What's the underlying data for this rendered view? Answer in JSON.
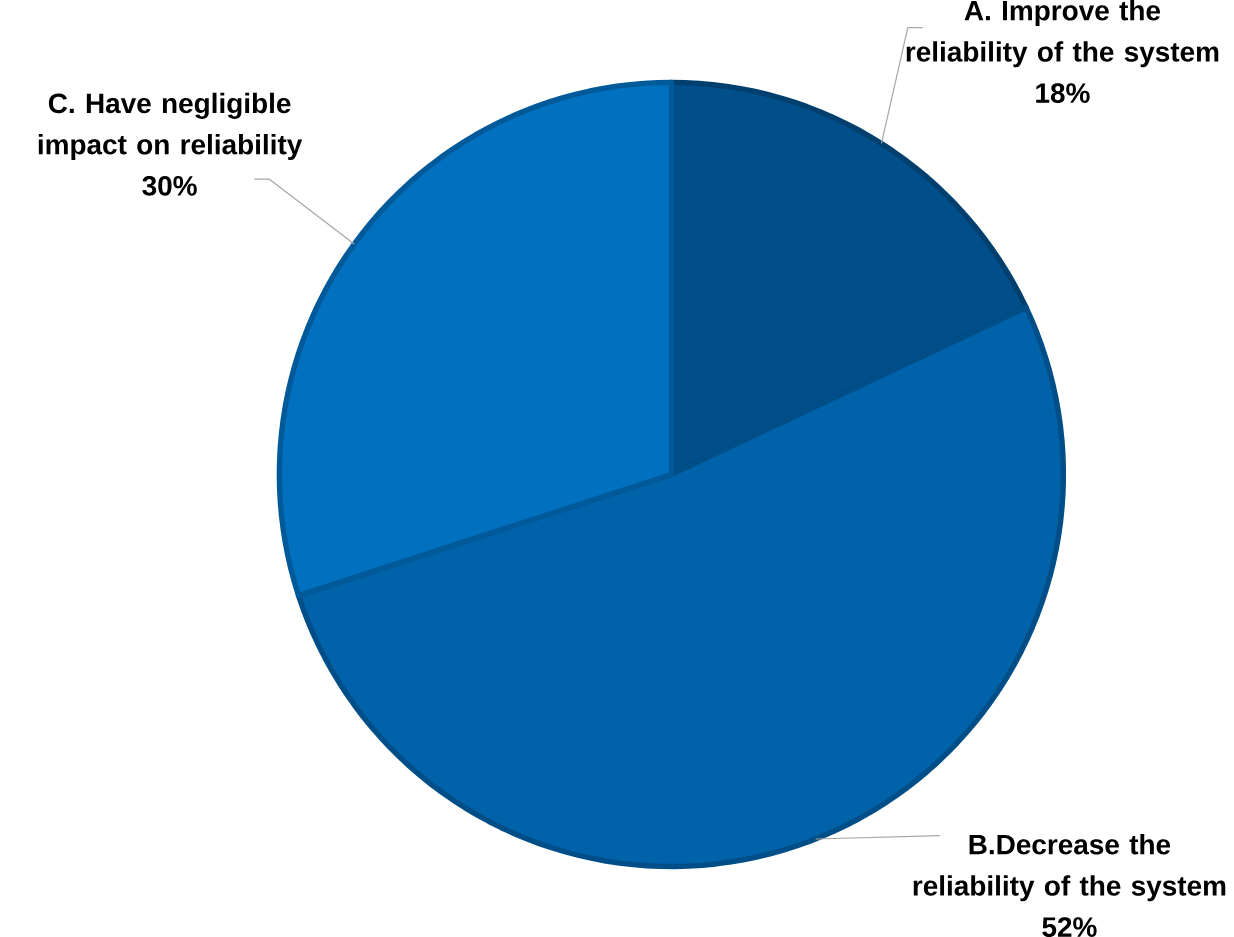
{
  "chart_data": {
    "type": "pie",
    "categories": [
      "A. Improve the reliability of the system",
      "B.Decrease  the reliability of the system",
      "C. Have negligible impact on reliability"
    ],
    "values": [
      18,
      52,
      30
    ],
    "colors": [
      "#004f8a",
      "#0062a9",
      "#0070bf"
    ],
    "value_labels": [
      "18%",
      "52%",
      "30%"
    ]
  }
}
